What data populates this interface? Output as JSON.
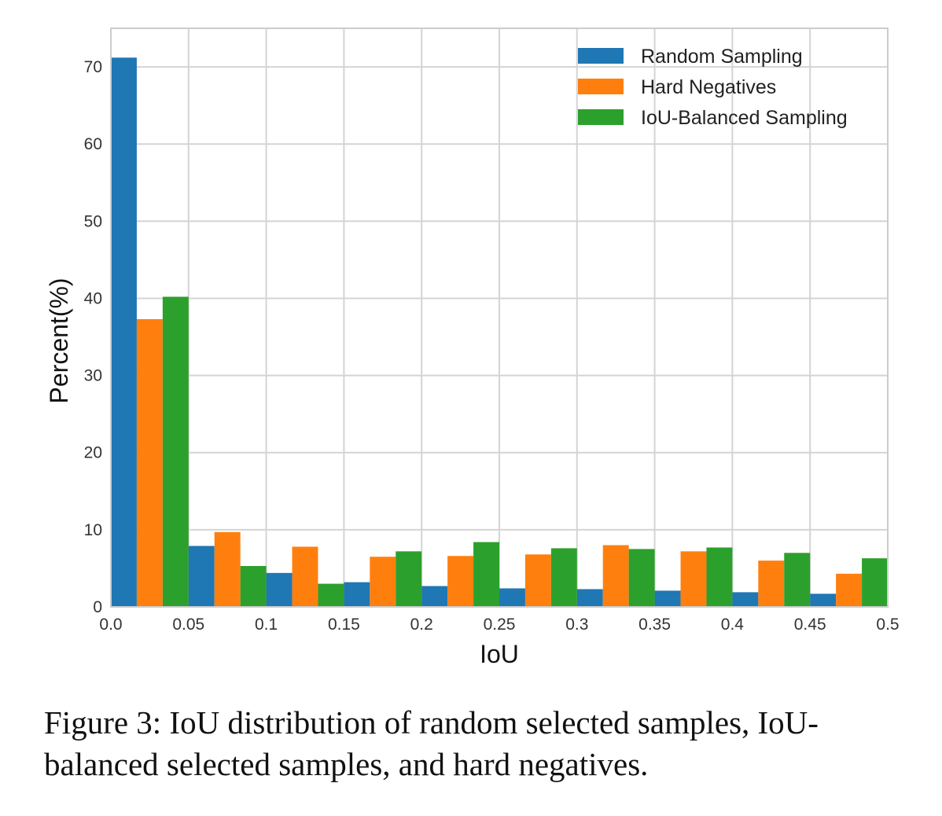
{
  "caption": "Figure 3: IoU distribution of random selected samples, IoU-balanced selected samples, and hard negatives.",
  "chart_data": {
    "type": "bar",
    "xlabel": "IoU",
    "ylabel": "Percent(%)",
    "xlim": [
      0.0,
      0.5
    ],
    "ylim": [
      0,
      75
    ],
    "grid": true,
    "legend_position": "top-right",
    "x_tick_labels": [
      "0.0",
      "0.05",
      "0.1",
      "0.15",
      "0.2",
      "0.25",
      "0.3",
      "0.35",
      "0.4",
      "0.45",
      "0.5"
    ],
    "y_ticks": [
      0,
      10,
      20,
      30,
      40,
      50,
      60,
      70
    ],
    "bin_edges": [
      0.0,
      0.05,
      0.1,
      0.15,
      0.2,
      0.25,
      0.3,
      0.35,
      0.4,
      0.45,
      0.5
    ],
    "series": [
      {
        "name": "Random Sampling",
        "color": "#1f77b4",
        "values": [
          71.2,
          7.9,
          4.4,
          3.2,
          2.7,
          2.4,
          2.3,
          2.1,
          1.9,
          1.7
        ]
      },
      {
        "name": "Hard Negatives",
        "color": "#ff7f0e",
        "values": [
          37.3,
          9.7,
          7.8,
          6.5,
          6.6,
          6.8,
          8.0,
          7.2,
          6.0,
          4.3
        ]
      },
      {
        "name": "IoU-Balanced Sampling",
        "color": "#2ca02c",
        "values": [
          40.2,
          5.3,
          3.0,
          7.2,
          8.4,
          7.6,
          7.5,
          7.7,
          7.0,
          6.3
        ]
      }
    ]
  }
}
